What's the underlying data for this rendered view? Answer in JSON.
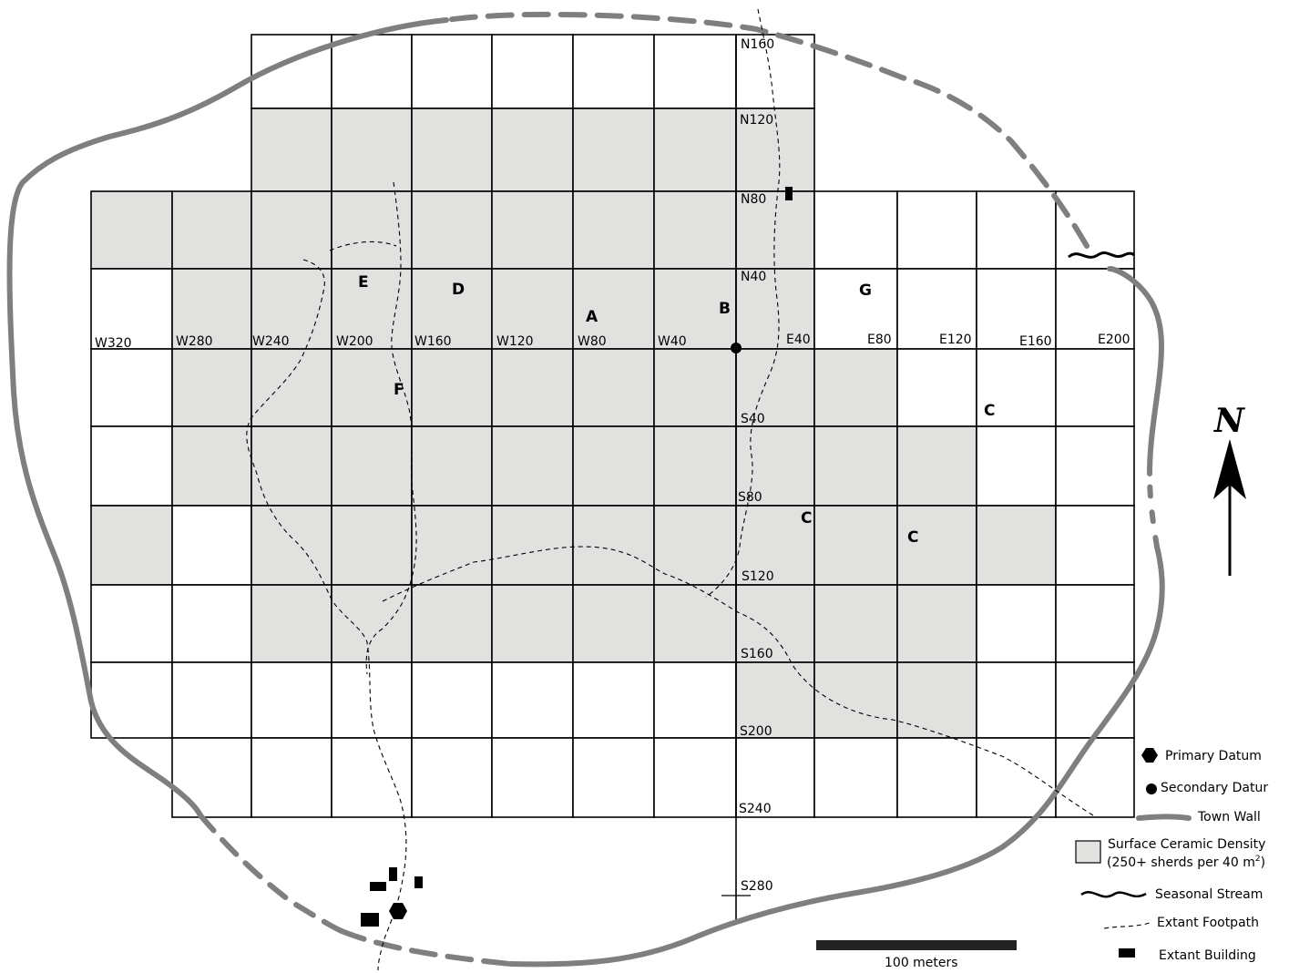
{
  "grid_labels": {
    "west": [
      "W320",
      "W280",
      "W240",
      "W200",
      "W160",
      "W120",
      "W80",
      "W40"
    ],
    "east": [
      "E40",
      "E80",
      "E120",
      "E160",
      "E200"
    ],
    "north": [
      "N160",
      "N120",
      "N80",
      "N40"
    ],
    "south": [
      "S40",
      "S80",
      "S120",
      "S160",
      "S200",
      "S240",
      "S280"
    ]
  },
  "area_labels": {
    "a": "A",
    "b": "B",
    "c": "C",
    "d": "D",
    "e": "E",
    "f": "F",
    "g": "G"
  },
  "north_arrow": {
    "label": "N"
  },
  "scale_bar": {
    "label": "100 meters"
  },
  "legend": {
    "primary_datum": "Primary Datum",
    "secondary_datum": "Secondary Datur",
    "town_wall": "Town Wall",
    "ceramic_line1": "Surface Ceramic Density",
    "ceramic_line2_a": "(250+ sherds per 40 m",
    "ceramic_line2_sup": "2",
    "ceramic_line2_b": ")",
    "seasonal_stream": "Seasonal Stream",
    "extant_footpath": "Extant Footpath",
    "extant_building": "Extant Building"
  },
  "colors": {
    "shaded_cell": "#e1e2e0",
    "town_wall": "#7f7f7f",
    "ink": "#000000"
  }
}
